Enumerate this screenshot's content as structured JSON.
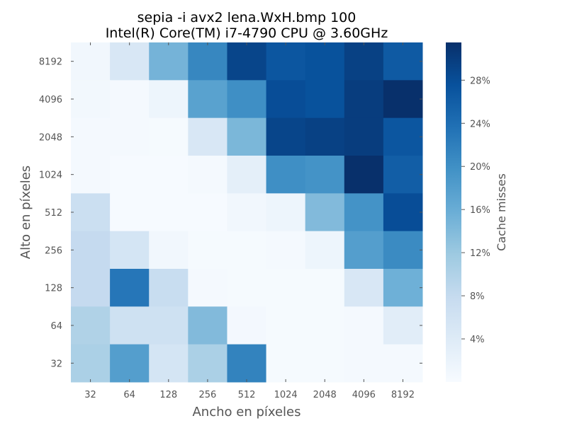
{
  "chart_data": {
    "type": "heatmap",
    "title": "sepia -i avx2 lena.WxH.bmp 100",
    "subtitle": "Intel(R) Core(TM) i7-4790 CPU @ 3.60GHz",
    "xlabel": "Ancho en píxeles",
    "ylabel": "Alto en píxeles",
    "x_categories": [
      "32",
      "64",
      "128",
      "256",
      "512",
      "1024",
      "2048",
      "4096",
      "8192"
    ],
    "y_categories": [
      "8192",
      "4096",
      "2048",
      "1024",
      "512",
      "256",
      "128",
      "64",
      "32"
    ],
    "values": [
      [
        1.0,
        5.0,
        15.0,
        21.0,
        29.0,
        27.0,
        27.5,
        29.5,
        26.5
      ],
      [
        0.8,
        0.4,
        1.5,
        17.5,
        20.0,
        28.0,
        27.5,
        30.0,
        31.5
      ],
      [
        0.5,
        0.5,
        0.3,
        5.0,
        14.5,
        29.0,
        29.5,
        30.0,
        27.0
      ],
      [
        0.4,
        0.2,
        0.2,
        0.5,
        3.0,
        20.0,
        19.5,
        31.5,
        26.0
      ],
      [
        7.0,
        0.2,
        0.2,
        0.2,
        1.0,
        1.5,
        14.0,
        19.5,
        28.0
      ],
      [
        8.0,
        5.5,
        1.0,
        0.3,
        0.3,
        0.5,
        1.5,
        18.0,
        20.5
      ],
      [
        8.0,
        23.0,
        7.5,
        0.5,
        0.3,
        0.3,
        0.3,
        5.0,
        15.5
      ],
      [
        10.0,
        6.5,
        6.5,
        14.0,
        0.7,
        0.3,
        0.3,
        0.5,
        3.5
      ],
      [
        10.5,
        18.0,
        5.5,
        10.5,
        21.5,
        0.3,
        0.3,
        0.5,
        0.5
      ]
    ],
    "colorbar": {
      "label": "Cache misses",
      "ticks": [
        "4%",
        "8%",
        "12%",
        "16%",
        "20%",
        "24%",
        "28%"
      ],
      "tick_values": [
        4,
        8,
        12,
        16,
        20,
        24,
        28
      ],
      "range": [
        0,
        31.5
      ]
    },
    "colormap": [
      "#f7fbff",
      "#deebf7",
      "#c6dbef",
      "#9ecae1",
      "#6baed6",
      "#4292c6",
      "#2171b5",
      "#08519c",
      "#08306b"
    ]
  }
}
